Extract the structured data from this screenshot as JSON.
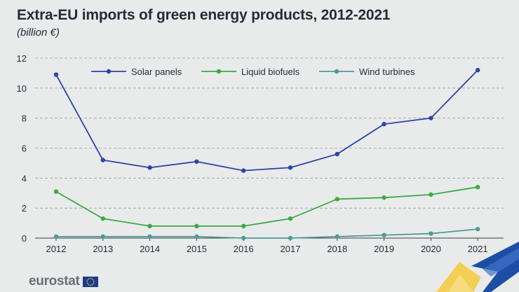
{
  "header": {
    "title": "Extra-EU imports of green energy products, 2012-2021",
    "subtitle": "(billion €)"
  },
  "footer": {
    "logo_text": "eurostat"
  },
  "colors": {
    "solar": "#2e43a5",
    "biofuels": "#3fa843",
    "wind": "#4f9a96",
    "text": "#262b38",
    "grid": "#9aa0a6",
    "axis": "#3c3c3c",
    "accent_yellow": "#f3cf55",
    "accent_blue": "#1d4ea5"
  },
  "chart_data": {
    "type": "line",
    "title": "Extra-EU imports of green energy products, 2012-2021",
    "subtitle": "(billion €)",
    "xlabel": "",
    "ylabel": "",
    "categories": [
      "2012",
      "2013",
      "2014",
      "2015",
      "2016",
      "2017",
      "2018",
      "2019",
      "2020",
      "2021"
    ],
    "y_ticks": [
      "0",
      "2",
      "4",
      "6",
      "8",
      "10",
      "12"
    ],
    "ylim": [
      0,
      12
    ],
    "grid": "horizontal dashed",
    "legend_position": "top",
    "series": [
      {
        "name": "Solar panels",
        "color": "#2e43a5",
        "values": [
          10.9,
          5.2,
          4.7,
          5.1,
          4.5,
          4.7,
          5.6,
          7.6,
          8.0,
          11.2
        ]
      },
      {
        "name": "Liquid biofuels",
        "color": "#3fa843",
        "values": [
          3.1,
          1.3,
          0.8,
          0.8,
          0.8,
          1.3,
          2.6,
          2.7,
          2.9,
          3.4
        ]
      },
      {
        "name": "Wind turbines",
        "color": "#4f9a96",
        "values": [
          0.1,
          0.1,
          0.1,
          0.1,
          0.0,
          0.0,
          0.1,
          0.2,
          0.3,
          0.6
        ]
      }
    ]
  }
}
